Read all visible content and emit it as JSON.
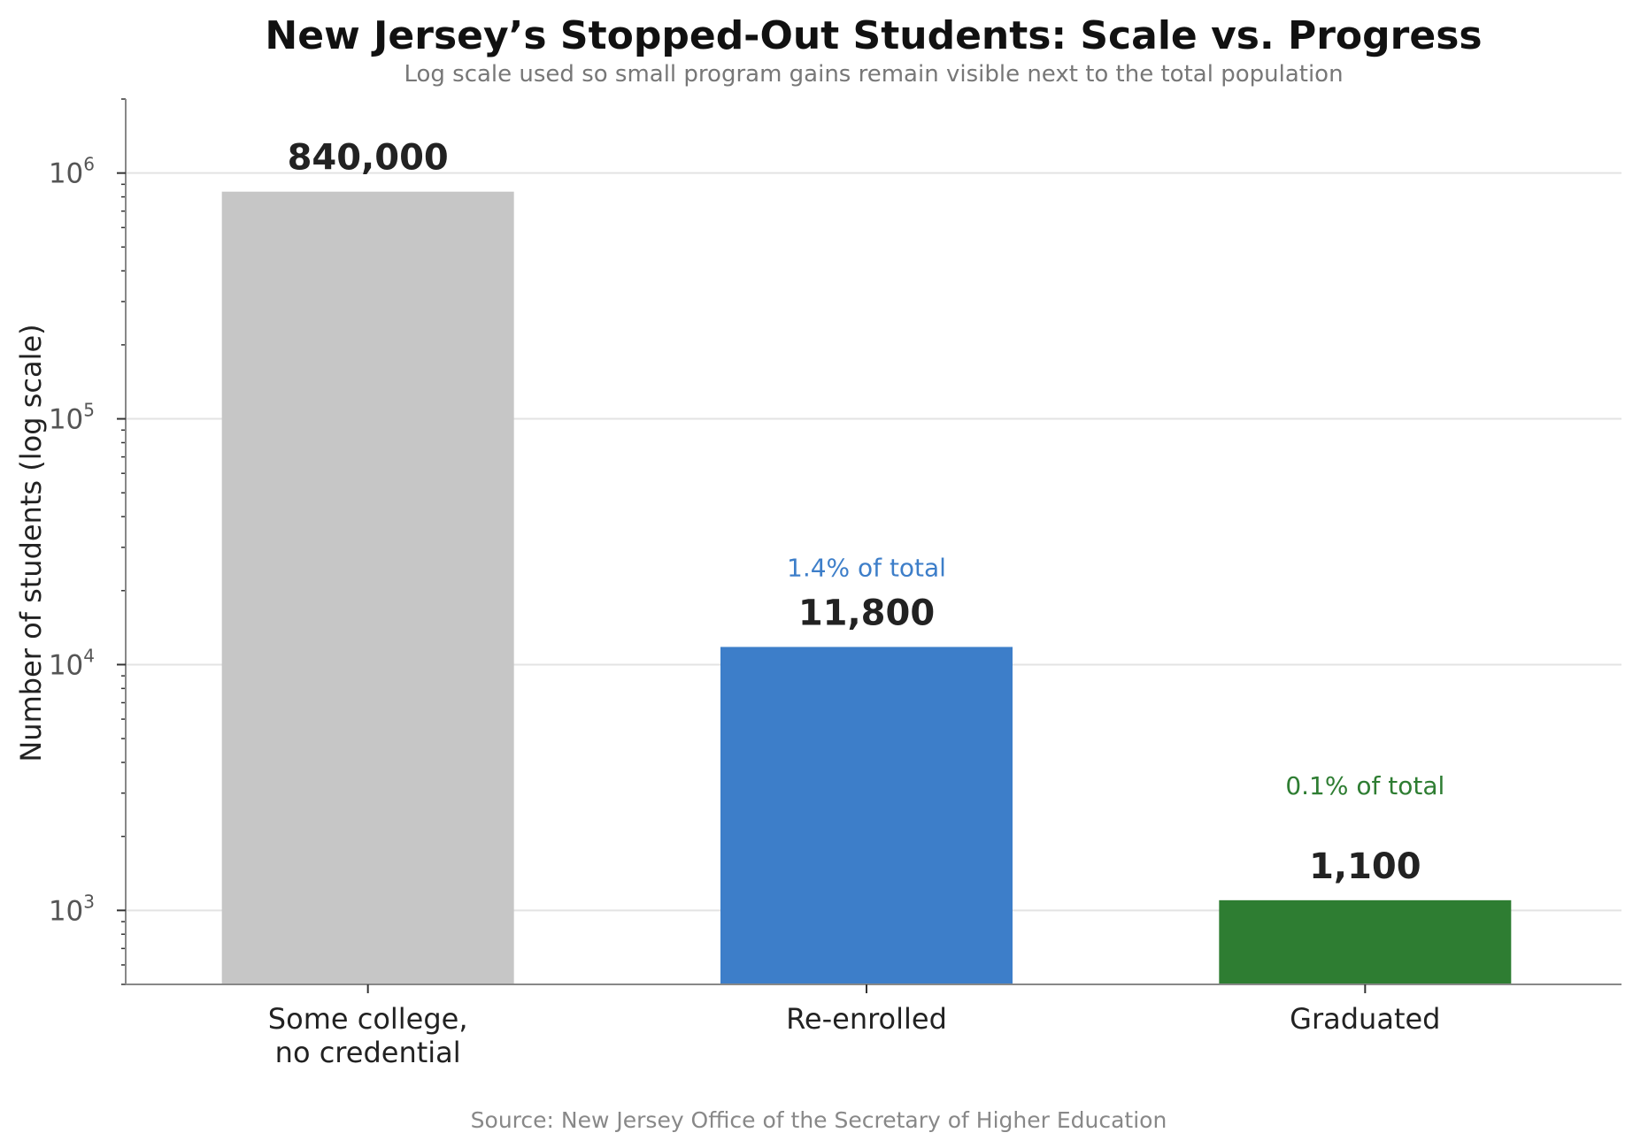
{
  "chart_data": {
    "type": "bar",
    "title": "New Jersey’s Stopped-Out Students: Scale vs. Progress",
    "subtitle": "Log scale used so small program gains remain visible next to the total population",
    "ylabel": "Number of students (log scale)",
    "y_scale": "log",
    "ylim": [
      500,
      2000000
    ],
    "grid": "horizontal",
    "categories": [
      [
        "Some college,",
        "no credential"
      ],
      [
        "Re-enrolled"
      ],
      [
        "Graduated"
      ]
    ],
    "values": [
      840000,
      11800,
      1100
    ],
    "value_labels": [
      "840,000",
      "11,800",
      "1,100"
    ],
    "share_labels": [
      "",
      "1.4% of total",
      "0.1% of total"
    ],
    "colors": [
      "#c6c6c6",
      "#3d7ec9",
      "#2e7d32"
    ],
    "y_ticks": [
      {
        "base": "10",
        "exp": "3",
        "value": 1000
      },
      {
        "base": "10",
        "exp": "4",
        "value": 10000
      },
      {
        "base": "10",
        "exp": "5",
        "value": 100000
      },
      {
        "base": "10",
        "exp": "6",
        "value": 1000000
      }
    ],
    "source": "Source: New Jersey Office of the Secretary of Higher Education"
  }
}
